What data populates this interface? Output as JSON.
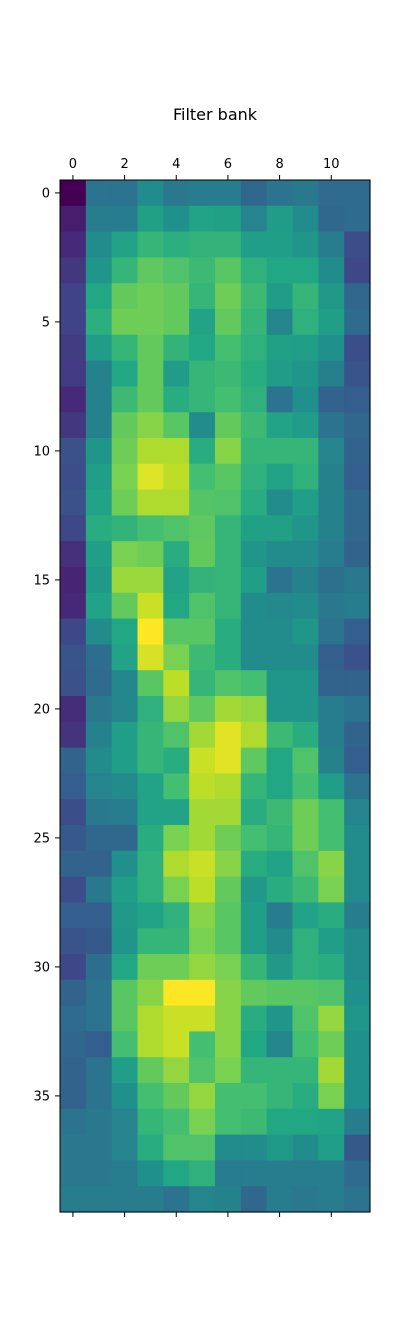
{
  "chart_data": {
    "type": "heatmap",
    "title": "Filter bank",
    "xlabel": "",
    "ylabel": "",
    "colormap": "viridis",
    "vmin": 0.0,
    "vmax": 1.0,
    "x_ticks": [
      0,
      2,
      4,
      6,
      8,
      10
    ],
    "y_ticks": [
      0,
      5,
      10,
      15,
      20,
      25,
      30,
      35
    ],
    "x_range": [
      -0.5,
      11.5
    ],
    "y_range": [
      -0.5,
      39.5
    ],
    "values": [
      [
        0.0,
        0.38,
        0.38,
        0.48,
        0.4,
        0.42,
        0.42,
        0.34,
        0.38,
        0.4,
        0.35,
        0.35
      ],
      [
        0.08,
        0.42,
        0.42,
        0.57,
        0.5,
        0.58,
        0.57,
        0.45,
        0.55,
        0.48,
        0.34,
        0.35
      ],
      [
        0.12,
        0.48,
        0.58,
        0.66,
        0.63,
        0.65,
        0.65,
        0.56,
        0.56,
        0.52,
        0.42,
        0.24
      ],
      [
        0.16,
        0.52,
        0.66,
        0.75,
        0.72,
        0.68,
        0.74,
        0.64,
        0.6,
        0.6,
        0.48,
        0.22
      ],
      [
        0.2,
        0.6,
        0.76,
        0.78,
        0.76,
        0.66,
        0.78,
        0.68,
        0.55,
        0.66,
        0.54,
        0.33
      ],
      [
        0.2,
        0.63,
        0.78,
        0.78,
        0.76,
        0.58,
        0.76,
        0.66,
        0.46,
        0.64,
        0.56,
        0.35
      ],
      [
        0.18,
        0.55,
        0.66,
        0.76,
        0.65,
        0.6,
        0.7,
        0.64,
        0.57,
        0.56,
        0.5,
        0.24
      ],
      [
        0.17,
        0.44,
        0.6,
        0.76,
        0.55,
        0.66,
        0.68,
        0.62,
        0.55,
        0.52,
        0.43,
        0.26
      ],
      [
        0.12,
        0.44,
        0.68,
        0.76,
        0.62,
        0.66,
        0.7,
        0.64,
        0.38,
        0.5,
        0.32,
        0.3
      ],
      [
        0.16,
        0.44,
        0.76,
        0.82,
        0.74,
        0.48,
        0.76,
        0.68,
        0.58,
        0.55,
        0.38,
        0.33
      ],
      [
        0.25,
        0.52,
        0.78,
        0.88,
        0.88,
        0.62,
        0.82,
        0.66,
        0.66,
        0.66,
        0.45,
        0.32
      ],
      [
        0.24,
        0.56,
        0.8,
        0.95,
        0.9,
        0.7,
        0.74,
        0.64,
        0.58,
        0.64,
        0.44,
        0.3
      ],
      [
        0.25,
        0.58,
        0.78,
        0.88,
        0.88,
        0.73,
        0.72,
        0.62,
        0.48,
        0.56,
        0.44,
        0.34
      ],
      [
        0.22,
        0.62,
        0.65,
        0.7,
        0.72,
        0.75,
        0.66,
        0.57,
        0.57,
        0.52,
        0.44,
        0.33
      ],
      [
        0.14,
        0.56,
        0.8,
        0.78,
        0.62,
        0.76,
        0.66,
        0.52,
        0.48,
        0.48,
        0.42,
        0.32
      ],
      [
        0.1,
        0.54,
        0.85,
        0.85,
        0.58,
        0.65,
        0.66,
        0.56,
        0.38,
        0.44,
        0.37,
        0.4
      ],
      [
        0.11,
        0.58,
        0.76,
        0.92,
        0.6,
        0.72,
        0.66,
        0.48,
        0.47,
        0.48,
        0.4,
        0.42
      ],
      [
        0.22,
        0.48,
        0.6,
        1.0,
        0.74,
        0.74,
        0.62,
        0.48,
        0.48,
        0.52,
        0.38,
        0.3
      ],
      [
        0.26,
        0.36,
        0.58,
        0.94,
        0.8,
        0.68,
        0.62,
        0.48,
        0.48,
        0.48,
        0.3,
        0.25
      ],
      [
        0.25,
        0.35,
        0.46,
        0.74,
        0.9,
        0.66,
        0.72,
        0.7,
        0.52,
        0.52,
        0.32,
        0.32
      ],
      [
        0.13,
        0.4,
        0.46,
        0.64,
        0.84,
        0.75,
        0.86,
        0.84,
        0.52,
        0.52,
        0.42,
        0.38
      ],
      [
        0.15,
        0.44,
        0.56,
        0.66,
        0.72,
        0.86,
        0.96,
        0.88,
        0.68,
        0.62,
        0.42,
        0.32
      ],
      [
        0.32,
        0.48,
        0.56,
        0.66,
        0.62,
        0.92,
        0.96,
        0.75,
        0.6,
        0.72,
        0.44,
        0.3
      ],
      [
        0.3,
        0.45,
        0.48,
        0.58,
        0.7,
        0.9,
        0.88,
        0.66,
        0.6,
        0.7,
        0.56,
        0.38
      ],
      [
        0.24,
        0.4,
        0.42,
        0.58,
        0.58,
        0.86,
        0.86,
        0.62,
        0.68,
        0.78,
        0.7,
        0.45
      ],
      [
        0.28,
        0.34,
        0.34,
        0.62,
        0.8,
        0.86,
        0.78,
        0.7,
        0.66,
        0.78,
        0.7,
        0.48
      ],
      [
        0.32,
        0.32,
        0.5,
        0.64,
        0.88,
        0.92,
        0.82,
        0.62,
        0.58,
        0.72,
        0.82,
        0.48
      ],
      [
        0.24,
        0.4,
        0.56,
        0.64,
        0.8,
        0.9,
        0.76,
        0.54,
        0.62,
        0.68,
        0.8,
        0.48
      ],
      [
        0.3,
        0.3,
        0.54,
        0.58,
        0.64,
        0.82,
        0.74,
        0.56,
        0.42,
        0.58,
        0.62,
        0.42
      ],
      [
        0.26,
        0.28,
        0.52,
        0.66,
        0.66,
        0.8,
        0.74,
        0.56,
        0.48,
        0.64,
        0.56,
        0.48
      ],
      [
        0.22,
        0.36,
        0.6,
        0.78,
        0.78,
        0.84,
        0.8,
        0.66,
        0.54,
        0.64,
        0.62,
        0.48
      ],
      [
        0.32,
        0.38,
        0.74,
        0.82,
        1.0,
        1.0,
        0.82,
        0.76,
        0.74,
        0.74,
        0.72,
        0.5
      ],
      [
        0.35,
        0.38,
        0.74,
        0.88,
        0.92,
        0.92,
        0.82,
        0.62,
        0.52,
        0.72,
        0.84,
        0.52
      ],
      [
        0.34,
        0.3,
        0.7,
        0.88,
        0.92,
        0.7,
        0.82,
        0.6,
        0.46,
        0.7,
        0.78,
        0.5
      ],
      [
        0.32,
        0.38,
        0.56,
        0.76,
        0.84,
        0.72,
        0.8,
        0.66,
        0.66,
        0.66,
        0.86,
        0.5
      ],
      [
        0.32,
        0.38,
        0.5,
        0.7,
        0.76,
        0.84,
        0.7,
        0.7,
        0.66,
        0.62,
        0.8,
        0.5
      ],
      [
        0.38,
        0.4,
        0.45,
        0.66,
        0.7,
        0.8,
        0.7,
        0.68,
        0.6,
        0.6,
        0.58,
        0.42
      ],
      [
        0.4,
        0.4,
        0.45,
        0.62,
        0.72,
        0.72,
        0.48,
        0.48,
        0.54,
        0.48,
        0.56,
        0.28
      ],
      [
        0.4,
        0.4,
        0.42,
        0.5,
        0.6,
        0.64,
        0.42,
        0.42,
        0.42,
        0.42,
        0.42,
        0.35
      ],
      [
        0.42,
        0.42,
        0.42,
        0.42,
        0.38,
        0.46,
        0.44,
        0.34,
        0.42,
        0.4,
        0.42,
        0.38
      ]
    ]
  }
}
